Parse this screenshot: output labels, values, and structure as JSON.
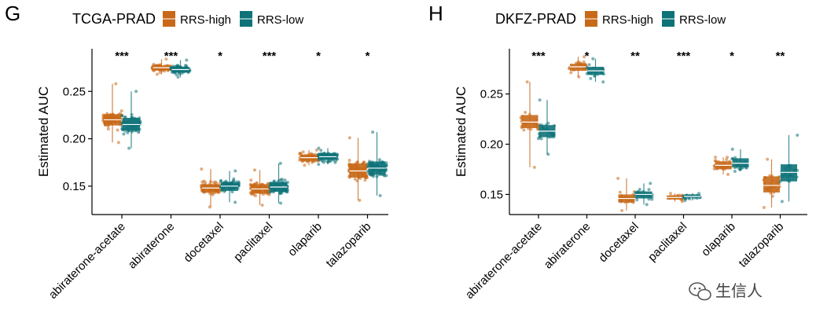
{
  "colors": {
    "high": "#C8691A",
    "low": "#0E7379",
    "axis": "#000000"
  },
  "legend_labels": [
    "RRS-high",
    "RRS-low"
  ],
  "watermark": {
    "text": "生信人",
    "icon": "wechat-icon"
  },
  "chart_data": [
    {
      "type": "box",
      "panel": "G",
      "legend_title": "TCGA-PRAD",
      "ylabel": "Estimated AUC",
      "ylim": [
        0.12,
        0.295
      ],
      "yticks": [
        0.15,
        0.2,
        0.25
      ],
      "ytick_labels": [
        "0.15",
        "0.20",
        "0.25"
      ],
      "categories": [
        "abiraterone-acetate",
        "abiraterone",
        "docetaxel",
        "paclitaxel",
        "olaparib",
        "talazoparib"
      ],
      "significance": [
        "***",
        "***",
        "*",
        "***",
        "*",
        "*"
      ],
      "series": [
        {
          "name": "RRS-high",
          "groups": [
            {
              "min": 0.196,
              "q1": 0.214,
              "median": 0.22,
              "q3": 0.226,
              "max": 0.258
            },
            {
              "min": 0.268,
              "q1": 0.272,
              "median": 0.275,
              "q3": 0.277,
              "max": 0.284
            },
            {
              "min": 0.128,
              "q1": 0.143,
              "median": 0.148,
              "q3": 0.152,
              "max": 0.168
            },
            {
              "min": 0.13,
              "q1": 0.142,
              "median": 0.147,
              "q3": 0.152,
              "max": 0.167
            },
            {
              "min": 0.172,
              "q1": 0.177,
              "median": 0.18,
              "q3": 0.183,
              "max": 0.188
            },
            {
              "min": 0.135,
              "q1": 0.159,
              "median": 0.166,
              "q3": 0.174,
              "max": 0.201
            }
          ]
        },
        {
          "name": "RRS-low",
          "groups": [
            {
              "min": 0.19,
              "q1": 0.209,
              "median": 0.215,
              "q3": 0.222,
              "max": 0.25
            },
            {
              "min": 0.265,
              "q1": 0.27,
              "median": 0.273,
              "q3": 0.276,
              "max": 0.283
            },
            {
              "min": 0.133,
              "q1": 0.145,
              "median": 0.15,
              "q3": 0.154,
              "max": 0.166
            },
            {
              "min": 0.132,
              "q1": 0.144,
              "median": 0.149,
              "q3": 0.154,
              "max": 0.174
            },
            {
              "min": 0.173,
              "q1": 0.178,
              "median": 0.181,
              "q3": 0.185,
              "max": 0.19
            },
            {
              "min": 0.14,
              "q1": 0.162,
              "median": 0.169,
              "q3": 0.176,
              "max": 0.207
            }
          ]
        }
      ]
    },
    {
      "type": "box",
      "panel": "H",
      "legend_title": "DKFZ-PRAD",
      "ylabel": "Estimated AUC",
      "ylim": [
        0.13,
        0.295
      ],
      "yticks": [
        0.15,
        0.2,
        0.25
      ],
      "ytick_labels": [
        "0.15",
        "0.20",
        "0.25"
      ],
      "categories": [
        "abiraterone-acetate",
        "abiraterone",
        "docetaxel",
        "paclitaxel",
        "olaparib",
        "talazoparib"
      ],
      "significance": [
        "***",
        "*",
        "**",
        "***",
        "*",
        "**"
      ],
      "series": [
        {
          "name": "RRS-high",
          "groups": [
            {
              "min": 0.177,
              "q1": 0.216,
              "median": 0.222,
              "q3": 0.229,
              "max": 0.262
            },
            {
              "min": 0.267,
              "q1": 0.273,
              "median": 0.277,
              "q3": 0.28,
              "max": 0.287
            },
            {
              "min": 0.134,
              "q1": 0.142,
              "median": 0.146,
              "q3": 0.15,
              "max": 0.166
            },
            {
              "min": 0.143,
              "q1": 0.145,
              "median": 0.147,
              "q3": 0.149,
              "max": 0.151
            },
            {
              "min": 0.17,
              "q1": 0.175,
              "median": 0.179,
              "q3": 0.183,
              "max": 0.187
            },
            {
              "min": 0.137,
              "q1": 0.152,
              "median": 0.159,
              "q3": 0.168,
              "max": 0.185
            }
          ]
        },
        {
          "name": "RRS-low",
          "groups": [
            {
              "min": 0.19,
              "q1": 0.207,
              "median": 0.213,
              "q3": 0.219,
              "max": 0.244
            },
            {
              "min": 0.262,
              "q1": 0.269,
              "median": 0.273,
              "q3": 0.277,
              "max": 0.285
            },
            {
              "min": 0.14,
              "q1": 0.146,
              "median": 0.15,
              "q3": 0.153,
              "max": 0.161
            },
            {
              "min": 0.144,
              "q1": 0.147,
              "median": 0.148,
              "q3": 0.15,
              "max": 0.151
            },
            {
              "min": 0.173,
              "q1": 0.177,
              "median": 0.181,
              "q3": 0.186,
              "max": 0.195
            },
            {
              "min": 0.143,
              "q1": 0.163,
              "median": 0.172,
              "q3": 0.18,
              "max": 0.209
            }
          ]
        }
      ]
    }
  ]
}
